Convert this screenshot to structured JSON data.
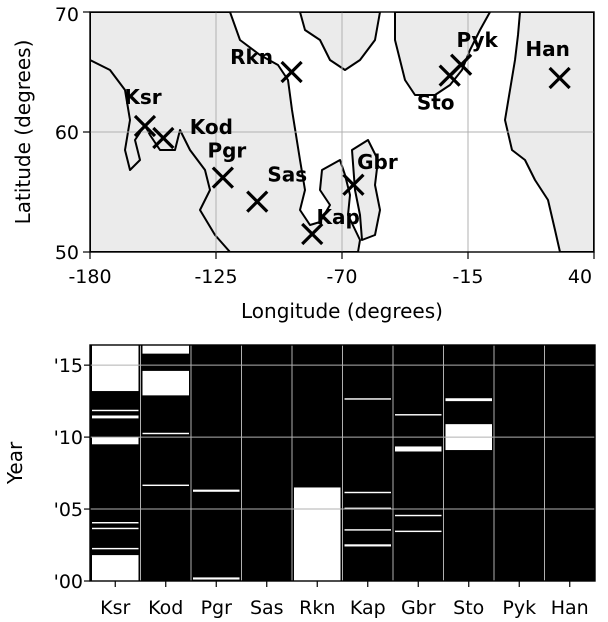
{
  "chart_data": [
    {
      "type": "scatter",
      "xlabel": "Longitude (degrees)",
      "ylabel": "Latitude (degrees)",
      "xlim": [
        -180,
        40
      ],
      "ylim": [
        50,
        70
      ],
      "xticks": [
        "-180",
        "-125",
        "-70",
        "-15",
        "40"
      ],
      "yticks": [
        "50",
        "60",
        "70"
      ],
      "grid": true,
      "background_map": "land-outline",
      "points": [
        {
          "label": "Ksr",
          "lon": -156,
          "lat": 60.5
        },
        {
          "label": "Kod",
          "lon": -148,
          "lat": 59.5
        },
        {
          "label": "Pgr",
          "lon": -122,
          "lat": 56.2
        },
        {
          "label": "Sas",
          "lon": -107,
          "lat": 54.2
        },
        {
          "label": "Rkn",
          "lon": -92,
          "lat": 65.0
        },
        {
          "label": "Kap",
          "lon": -83,
          "lat": 51.5
        },
        {
          "label": "Gbr",
          "lon": -65,
          "lat": 55.6
        },
        {
          "label": "Sto",
          "lon": -23,
          "lat": 64.7
        },
        {
          "label": "Pyk",
          "lon": -18,
          "lat": 65.6
        },
        {
          "label": "Han",
          "lon": 25,
          "lat": 64.5
        }
      ]
    },
    {
      "type": "heatmap",
      "ylabel": "Year",
      "categories": [
        "Ksr",
        "Kod",
        "Pgr",
        "Sas",
        "Rkn",
        "Kap",
        "Gbr",
        "Sto",
        "Pyk",
        "Han"
      ],
      "yticks": [
        "'00",
        "'05",
        "'10",
        "'15"
      ],
      "ylim": [
        2000,
        2016.4
      ],
      "colors": {
        "data": "#000000",
        "missing": "#ffffff"
      },
      "missing_intervals": [
        [
          [
            2000,
            2001.8
          ],
          [
            2002.2,
            2002.3
          ],
          [
            2003.6,
            2003.7
          ],
          [
            2004.0,
            2004.1
          ],
          [
            2009.5,
            2010.0
          ],
          [
            2011.3,
            2011.5
          ],
          [
            2011.8,
            2011.9
          ],
          [
            2013.2,
            2016.4
          ]
        ],
        [
          [
            2012.9,
            2014.6
          ],
          [
            2015.8,
            2016.4
          ],
          [
            2006.6,
            2006.7
          ],
          [
            2010.2,
            2010.3
          ]
        ],
        [
          [
            2000.1,
            2000.25
          ],
          [
            2006.2,
            2006.35
          ]
        ],
        [],
        [
          [
            2000,
            2006.5
          ]
        ],
        [
          [
            2002.4,
            2002.55
          ],
          [
            2003.5,
            2003.6
          ],
          [
            2005.0,
            2005.1
          ],
          [
            2006.1,
            2006.2
          ],
          [
            2012.6,
            2012.7
          ]
        ],
        [
          [
            2003.4,
            2003.5
          ],
          [
            2004.5,
            2004.6
          ],
          [
            2009.0,
            2009.35
          ],
          [
            2011.5,
            2011.6
          ]
        ],
        [
          [
            2009.1,
            2010.9
          ],
          [
            2012.5,
            2012.7
          ]
        ],
        [],
        []
      ]
    }
  ]
}
